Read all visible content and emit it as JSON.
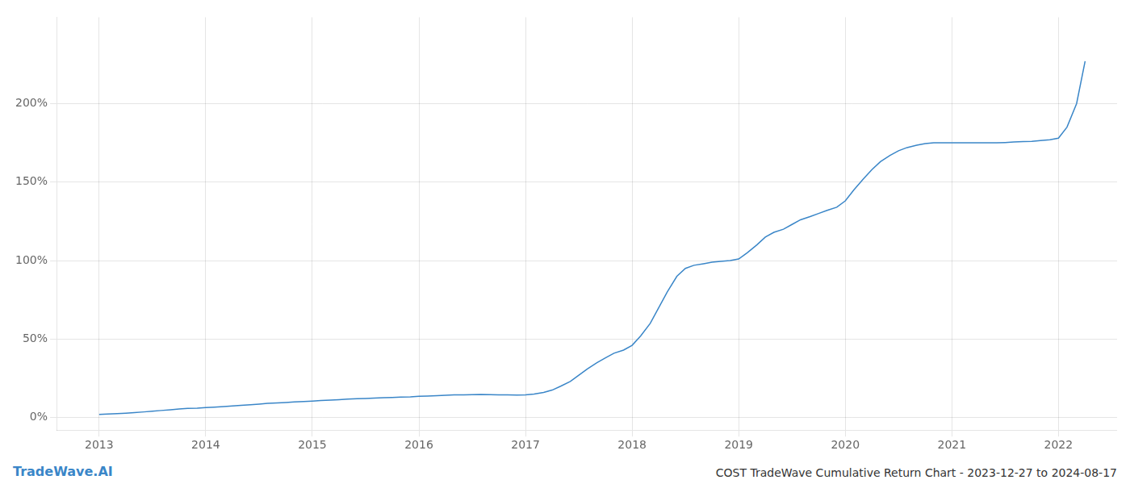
{
  "chart_data": {
    "type": "line",
    "title": "COST TradeWave Cumulative Return Chart - 2023-12-27 to 2024-08-17",
    "annotations": [
      {
        "text": "TradeWave.AI",
        "color": "#3a86c8"
      }
    ],
    "color": "#3a86c8",
    "grid": true,
    "x": [
      2013.0,
      2013.08,
      2013.17,
      2013.25,
      2013.33,
      2013.42,
      2013.5,
      2013.58,
      2013.67,
      2013.75,
      2013.83,
      2013.92,
      2014.0,
      2014.08,
      2014.17,
      2014.25,
      2014.33,
      2014.42,
      2014.5,
      2014.58,
      2014.67,
      2014.75,
      2014.83,
      2014.92,
      2015.0,
      2015.08,
      2015.17,
      2015.25,
      2015.33,
      2015.42,
      2015.5,
      2015.58,
      2015.67,
      2015.75,
      2015.83,
      2015.92,
      2016.0,
      2016.08,
      2016.17,
      2016.25,
      2016.33,
      2016.42,
      2016.5,
      2016.58,
      2016.67,
      2016.75,
      2016.83,
      2016.92,
      2017.0,
      2017.08,
      2017.17,
      2017.25,
      2017.33,
      2017.42,
      2017.5,
      2017.58,
      2017.67,
      2017.75,
      2017.83,
      2017.92,
      2018.0,
      2018.08,
      2018.17,
      2018.25,
      2018.33,
      2018.42,
      2018.5,
      2018.58,
      2018.67,
      2018.75,
      2018.83,
      2018.92,
      2019.0,
      2019.08,
      2019.17,
      2019.25,
      2019.33,
      2019.42,
      2019.5,
      2019.58,
      2019.67,
      2019.75,
      2019.83,
      2019.92,
      2020.0,
      2020.08,
      2020.17,
      2020.25,
      2020.33,
      2020.42,
      2020.5,
      2020.58,
      2020.67,
      2020.75,
      2020.83,
      2020.92,
      2021.0,
      2021.08,
      2021.17,
      2021.25,
      2021.33,
      2021.42,
      2021.5,
      2021.58,
      2021.67,
      2021.75,
      2021.83,
      2021.92,
      2022.0,
      2022.08,
      2022.17,
      2022.25
    ],
    "values": [
      2.0,
      2.2,
      2.5,
      2.8,
      3.2,
      3.6,
      4.0,
      4.5,
      5.0,
      5.5,
      5.8,
      6.0,
      6.3,
      6.6,
      7.0,
      7.4,
      7.8,
      8.2,
      8.6,
      9.0,
      9.3,
      9.6,
      9.9,
      10.2,
      10.5,
      10.8,
      11.1,
      11.4,
      11.7,
      12.0,
      12.2,
      12.4,
      12.6,
      12.8,
      13.0,
      13.2,
      13.5,
      13.7,
      14.0,
      14.2,
      14.4,
      14.5,
      14.6,
      14.7,
      14.6,
      14.5,
      14.4,
      14.3,
      14.5,
      15.0,
      16.0,
      17.5,
      20.0,
      23.0,
      27.0,
      31.0,
      35.0,
      38.0,
      41.0,
      43.0,
      46.0,
      52.0,
      60.0,
      70.0,
      80.0,
      90.0,
      95.0,
      97.0,
      98.0,
      99.0,
      99.5,
      100.0,
      101.0,
      105.0,
      110.0,
      115.0,
      118.0,
      120.0,
      123.0,
      126.0,
      128.0,
      130.0,
      132.0,
      134.0,
      138.0,
      145.0,
      152.0,
      158.0,
      163.0,
      167.0,
      170.0,
      172.0,
      173.5,
      174.5,
      175.0,
      175.0,
      175.0,
      175.0,
      175.0,
      175.0,
      175.0,
      175.0,
      175.2,
      175.5,
      175.8,
      176.0,
      176.5,
      177.0,
      178.0,
      185.0,
      200.0,
      227.0
    ],
    "xlim": [
      2012.6,
      2022.55
    ],
    "ylim": [
      -8,
      255
    ],
    "xticks": [
      2013,
      2014,
      2015,
      2016,
      2017,
      2018,
      2019,
      2020,
      2021,
      2022
    ],
    "yticks": [
      {
        "value": 0,
        "label": "0%"
      },
      {
        "value": 50,
        "label": "50%"
      },
      {
        "value": 100,
        "label": "100%"
      },
      {
        "value": 150,
        "label": "150%"
      },
      {
        "value": 200,
        "label": "200%"
      }
    ]
  }
}
